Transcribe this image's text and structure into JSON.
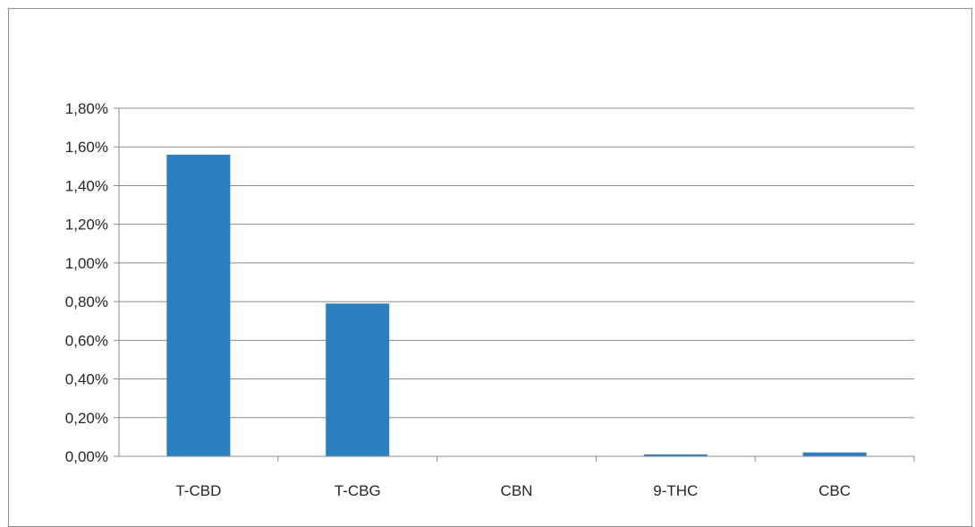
{
  "chart_data": {
    "type": "bar",
    "title": "",
    "xlabel": "",
    "ylabel": "",
    "categories": [
      "T-CBD",
      "T-CBG",
      "CBN",
      "9-THC",
      "CBC"
    ],
    "values": [
      1.56,
      0.79,
      0.0,
      0.01,
      0.02
    ],
    "unit": "%",
    "ylim": [
      0,
      1.8
    ],
    "yticks": [
      "0,00%",
      "0,20%",
      "0,40%",
      "0,60%",
      "0,80%",
      "1,00%",
      "1,20%",
      "1,40%",
      "1,60%",
      "1,80%"
    ],
    "grid": true,
    "legend": "none",
    "bar_color": "#2a7fc1",
    "grid_color": "#8c8c8c"
  }
}
